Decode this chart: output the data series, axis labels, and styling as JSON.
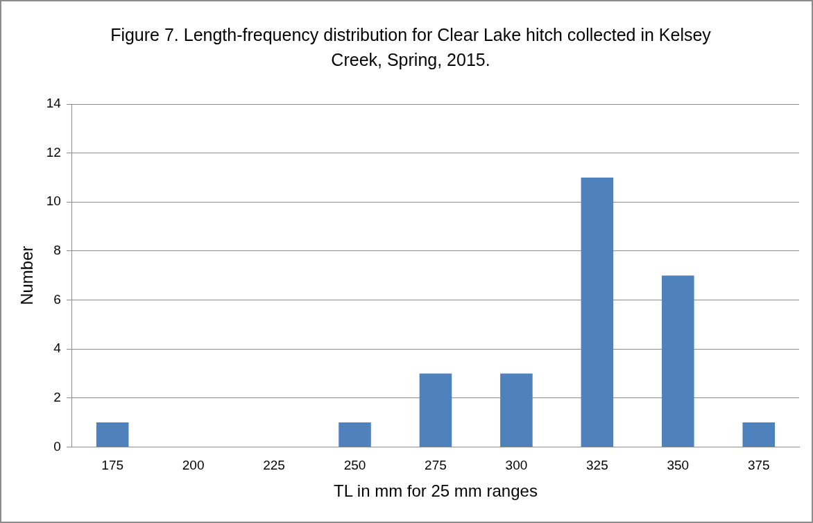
{
  "chart_data": {
    "type": "bar",
    "title": "Figure 7.  Length-frequency distribution for Clear Lake hitch collected in Kelsey Creek, Spring, 2015.",
    "xlabel": "TL in mm for 25 mm ranges",
    "ylabel": "Number",
    "categories": [
      "175",
      "200",
      "225",
      "250",
      "275",
      "300",
      "325",
      "350",
      "375"
    ],
    "values": [
      1,
      0,
      0,
      1,
      3,
      3,
      11,
      7,
      1
    ],
    "color": "#4f81bd",
    "ylim": [
      0,
      14
    ],
    "yticks": [
      0,
      2,
      4,
      6,
      8,
      10,
      12,
      14
    ],
    "grid": "y"
  }
}
